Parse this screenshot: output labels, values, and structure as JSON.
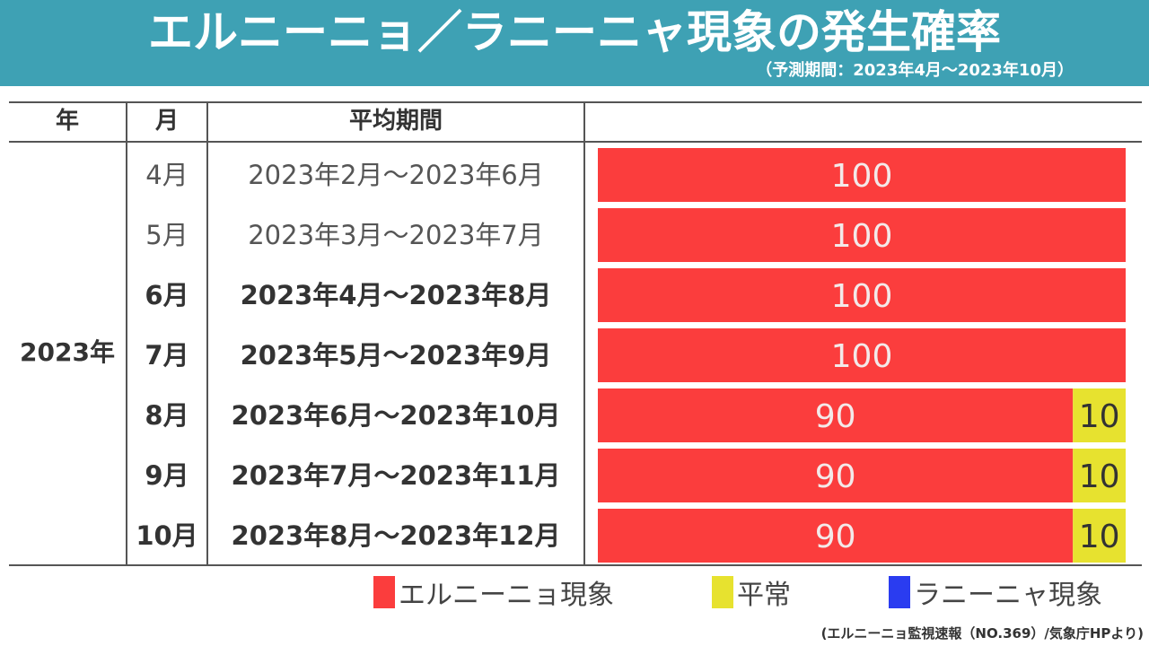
{
  "header": {
    "title": "エルニーニョ／ラニーニャ現象の発生確率",
    "subtitle": "（予測期間：2023年4月～2023年10月）"
  },
  "table": {
    "headers": [
      "年",
      "月",
      "平均期間",
      ""
    ],
    "year": "2023年"
  },
  "chart_data": {
    "type": "bar",
    "orientation": "horizontal",
    "stacked": true,
    "categories": [
      "4月",
      "5月",
      "6月",
      "7月",
      "8月",
      "9月",
      "10月"
    ],
    "periods": [
      "2023年2月～2023年6月",
      "2023年3月～2023年7月",
      "2023年4月～2023年8月",
      "2023年5月～2023年9月",
      "2023年6月～2023年10月",
      "2023年7月～2023年11月",
      "2023年8月～2023年12月"
    ],
    "bold_rows": [
      false,
      false,
      true,
      true,
      true,
      true,
      true
    ],
    "series": [
      {
        "name": "エルニーニョ現象",
        "color": "#fb3d3d",
        "text_color": "#f3e9e9",
        "values": [
          100,
          100,
          100,
          100,
          90,
          90,
          90
        ]
      },
      {
        "name": "平常",
        "color": "#e7e22f",
        "text_color": "#333333",
        "values": [
          0,
          0,
          0,
          0,
          10,
          10,
          10
        ]
      },
      {
        "name": "ラニーニャ現象",
        "color": "#2a3cf0",
        "text_color": "#ffffff",
        "values": [
          0,
          0,
          0,
          0,
          0,
          0,
          0
        ]
      }
    ],
    "xlim": [
      0,
      100
    ],
    "legend_position": "bottom"
  },
  "source": "(エルニーニョ監視速報（NO.369）/気象庁HPより)"
}
